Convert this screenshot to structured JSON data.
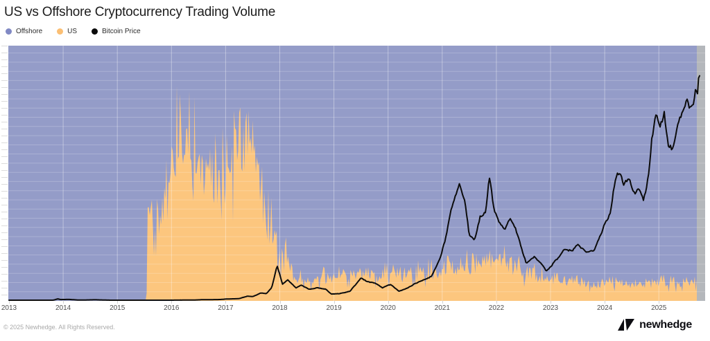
{
  "title": "US vs Offshore Cryptocurrency Trading Volume",
  "legend": [
    {
      "label": "Offshore",
      "color": "#8189c4"
    },
    {
      "label": "US",
      "color": "#fbbf74"
    },
    {
      "label": "Bitcoin Price",
      "color": "#0a0a0a"
    }
  ],
  "footer": {
    "copyright": "© 2025 Newhedge. All Rights Reserved.",
    "brand": "newhedge"
  },
  "chart_data": {
    "type": "area",
    "stacking": "percent",
    "title": "US vs Offshore Cryptocurrency Trading Volume",
    "x_axis": {
      "ticks": [
        "2013",
        "2014",
        "2015",
        "2016",
        "2017",
        "2018",
        "2019",
        "2020",
        "2021",
        "2022",
        "2023",
        "2024",
        "2025"
      ],
      "range": [
        2013,
        2025.76
      ]
    },
    "share_axis": {
      "range_pct": [
        0,
        100
      ]
    },
    "price_axis": {
      "range_usd": [
        0,
        139000
      ],
      "gridline_step_usd": 5000
    },
    "colors": {
      "offshore_area": "#949cc8",
      "us_area": "#fcc67e",
      "btc_line": "#0c0c0c",
      "future_strip": "#b4b7bb",
      "gridline": "rgba(255,255,255,0.22)",
      "year_line": "rgba(255,255,255,0.38)"
    },
    "series": [
      {
        "name": "Offshore",
        "role": "area-remainder-to-100pct"
      },
      {
        "name": "US",
        "role": "area",
        "unit": "percent-of-total-volume",
        "share_keypoints": [
          [
            2013.0,
            0,
            0
          ],
          [
            2015.54,
            0,
            0
          ],
          [
            2015.56,
            36,
            16
          ],
          [
            2015.7,
            32,
            18
          ],
          [
            2015.85,
            34,
            20
          ],
          [
            2016.0,
            44,
            28
          ],
          [
            2016.1,
            50,
            34
          ],
          [
            2016.25,
            52,
            36
          ],
          [
            2016.4,
            48,
            34
          ],
          [
            2016.55,
            50,
            32
          ],
          [
            2016.7,
            42,
            30
          ],
          [
            2016.85,
            36,
            26
          ],
          [
            2017.0,
            44,
            30
          ],
          [
            2017.15,
            58,
            30
          ],
          [
            2017.3,
            62,
            26
          ],
          [
            2017.45,
            56,
            28
          ],
          [
            2017.55,
            44,
            26
          ],
          [
            2017.65,
            34,
            22
          ],
          [
            2017.8,
            28,
            20
          ],
          [
            2017.92,
            22,
            16
          ],
          [
            2018.02,
            13,
            11
          ],
          [
            2018.12,
            15,
            12
          ],
          [
            2018.25,
            9,
            7
          ],
          [
            2018.5,
            7,
            5
          ],
          [
            2018.9,
            8,
            5
          ],
          [
            2019.1,
            9,
            5
          ],
          [
            2019.4,
            10,
            5
          ],
          [
            2019.7,
            9,
            6
          ],
          [
            2020.0,
            10,
            5
          ],
          [
            2020.3,
            9,
            5
          ],
          [
            2020.6,
            10,
            6
          ],
          [
            2020.9,
            9,
            7
          ],
          [
            2021.1,
            10,
            8
          ],
          [
            2021.3,
            12,
            8
          ],
          [
            2021.5,
            13,
            8
          ],
          [
            2021.7,
            12,
            7
          ],
          [
            2021.9,
            14,
            8
          ],
          [
            2022.0,
            16,
            7
          ],
          [
            2022.1,
            15,
            7
          ],
          [
            2022.3,
            12,
            7
          ],
          [
            2022.5,
            10,
            6
          ],
          [
            2022.8,
            9,
            5
          ],
          [
            2023.0,
            8,
            5
          ],
          [
            2023.3,
            7,
            5
          ],
          [
            2023.6,
            6,
            4
          ],
          [
            2023.9,
            6,
            4
          ],
          [
            2024.2,
            7,
            4
          ],
          [
            2024.5,
            6,
            4
          ],
          [
            2024.8,
            6,
            4
          ],
          [
            2025.0,
            7,
            4
          ],
          [
            2025.3,
            6,
            4
          ],
          [
            2025.5,
            7,
            4
          ],
          [
            2025.7,
            7,
            4
          ]
        ]
      },
      {
        "name": "Bitcoin Price",
        "role": "line",
        "unit": "USD",
        "price_keypoints": [
          [
            2013.0,
            13
          ],
          [
            2013.1,
            30
          ],
          [
            2013.25,
            140
          ],
          [
            2013.4,
            90
          ],
          [
            2013.6,
            100
          ],
          [
            2013.8,
            200
          ],
          [
            2013.9,
            1100
          ],
          [
            2013.95,
            700
          ],
          [
            2014.1,
            800
          ],
          [
            2014.3,
            450
          ],
          [
            2014.6,
            600
          ],
          [
            2014.9,
            350
          ],
          [
            2015.1,
            220
          ],
          [
            2015.4,
            240
          ],
          [
            2015.7,
            270
          ],
          [
            2015.9,
            370
          ],
          [
            2016.1,
            420
          ],
          [
            2016.4,
            450
          ],
          [
            2016.6,
            670
          ],
          [
            2016.9,
            730
          ],
          [
            2017.0,
            980
          ],
          [
            2017.15,
            1150
          ],
          [
            2017.25,
            1250
          ],
          [
            2017.4,
            2600
          ],
          [
            2017.5,
            2400
          ],
          [
            2017.65,
            4300
          ],
          [
            2017.75,
            3900
          ],
          [
            2017.85,
            7200
          ],
          [
            2017.95,
            19200
          ],
          [
            2018.0,
            14000
          ],
          [
            2018.05,
            9000
          ],
          [
            2018.15,
            11200
          ],
          [
            2018.3,
            6900
          ],
          [
            2018.4,
            8500
          ],
          [
            2018.55,
            6400
          ],
          [
            2018.7,
            7300
          ],
          [
            2018.85,
            6300
          ],
          [
            2018.95,
            3700
          ],
          [
            2019.1,
            3900
          ],
          [
            2019.3,
            5300
          ],
          [
            2019.5,
            12500
          ],
          [
            2019.6,
            10500
          ],
          [
            2019.75,
            9800
          ],
          [
            2019.9,
            7200
          ],
          [
            2020.05,
            9000
          ],
          [
            2020.2,
            5300
          ],
          [
            2020.35,
            6800
          ],
          [
            2020.5,
            9400
          ],
          [
            2020.65,
            11500
          ],
          [
            2020.8,
            13500
          ],
          [
            2020.95,
            23000
          ],
          [
            2021.05,
            33000
          ],
          [
            2021.15,
            48000
          ],
          [
            2021.25,
            57000
          ],
          [
            2021.32,
            63500
          ],
          [
            2021.42,
            53000
          ],
          [
            2021.5,
            35000
          ],
          [
            2021.6,
            33000
          ],
          [
            2021.7,
            46000
          ],
          [
            2021.8,
            48000
          ],
          [
            2021.87,
            67000
          ],
          [
            2021.95,
            50000
          ],
          [
            2022.05,
            43000
          ],
          [
            2022.15,
            38500
          ],
          [
            2022.25,
            45000
          ],
          [
            2022.35,
            40000
          ],
          [
            2022.45,
            30000
          ],
          [
            2022.55,
            20000
          ],
          [
            2022.7,
            23500
          ],
          [
            2022.85,
            19500
          ],
          [
            2022.92,
            16300
          ],
          [
            2023.05,
            21000
          ],
          [
            2023.15,
            24500
          ],
          [
            2023.25,
            28000
          ],
          [
            2023.4,
            27000
          ],
          [
            2023.5,
            30500
          ],
          [
            2023.65,
            26000
          ],
          [
            2023.8,
            27500
          ],
          [
            2023.9,
            35000
          ],
          [
            2024.0,
            42500
          ],
          [
            2024.1,
            48000
          ],
          [
            2024.2,
            68000
          ],
          [
            2024.27,
            72000
          ],
          [
            2024.35,
            64500
          ],
          [
            2024.45,
            67000
          ],
          [
            2024.55,
            58000
          ],
          [
            2024.65,
            61000
          ],
          [
            2024.72,
            55000
          ],
          [
            2024.8,
            66000
          ],
          [
            2024.88,
            91000
          ],
          [
            2024.95,
            104000
          ],
          [
            2025.02,
            95000
          ],
          [
            2025.1,
            102000
          ],
          [
            2025.18,
            84000
          ],
          [
            2025.27,
            82000
          ],
          [
            2025.35,
            95000
          ],
          [
            2025.45,
            104000
          ],
          [
            2025.52,
            111000
          ],
          [
            2025.58,
            105000
          ],
          [
            2025.63,
            108000
          ],
          [
            2025.68,
            118000
          ],
          [
            2025.71,
            113000
          ],
          [
            2025.74,
            124000
          ]
        ]
      }
    ]
  }
}
